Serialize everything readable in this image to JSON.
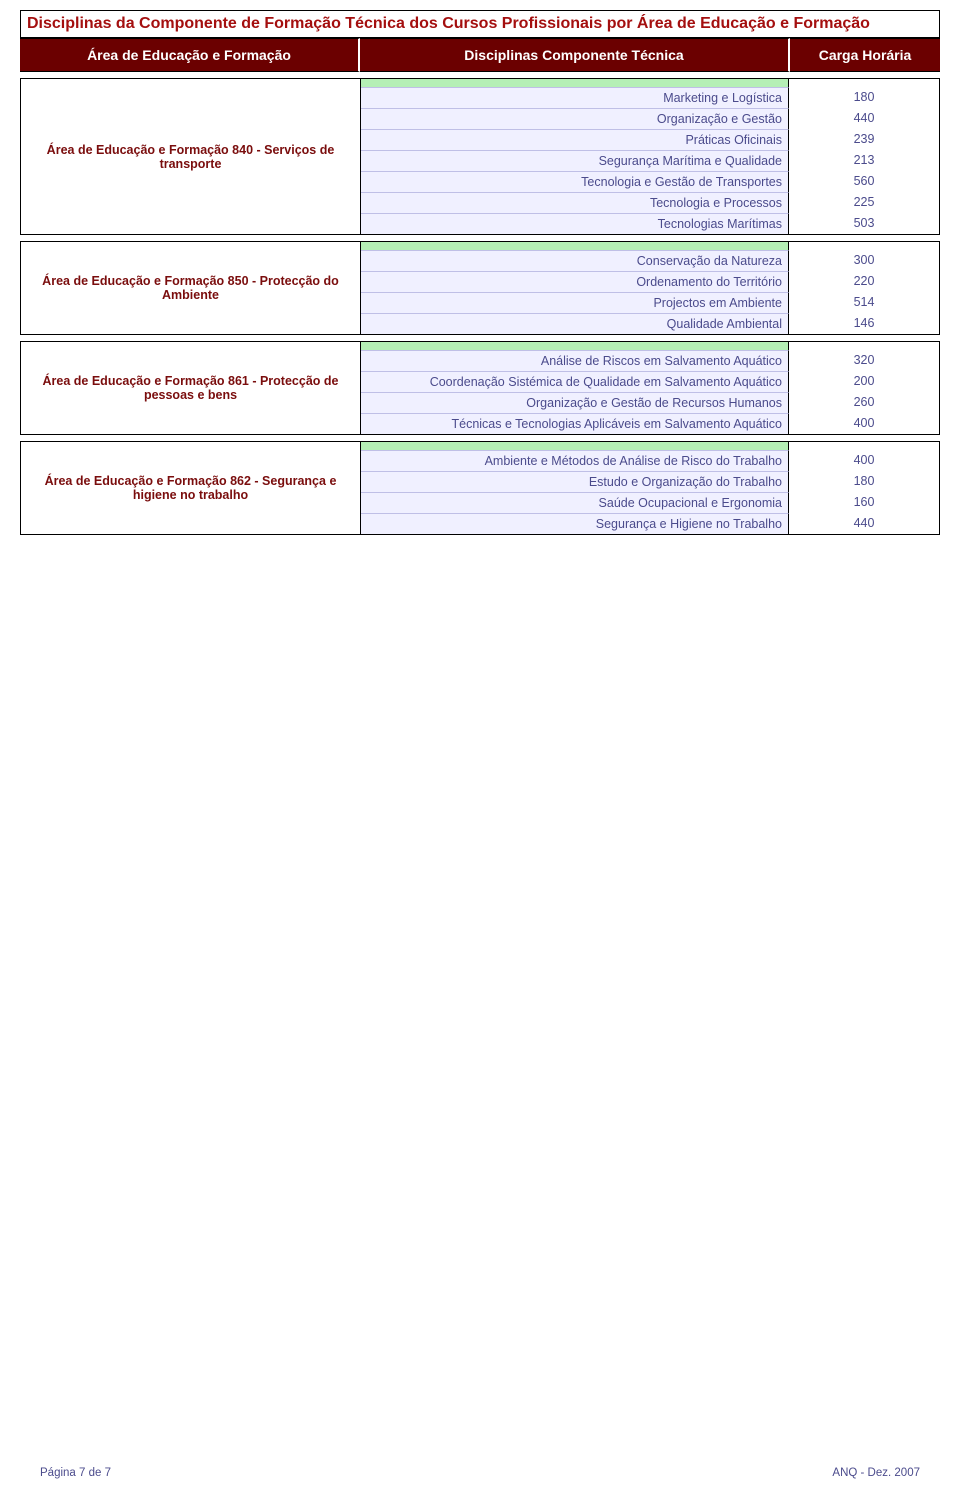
{
  "colors": {
    "title_text": "#a40f0f",
    "header_bg": "#6b0000",
    "header_text": "#ffffff",
    "area_label_text": "#7a0d0d",
    "row_bg_even": "#f0f0ff",
    "row_bg_highlight": "#b5efb5",
    "row_text": "#4b4b8c",
    "border_color": "#000000"
  },
  "title": "Disciplinas da Componente de Formação Técnica dos Cursos Profissionais por Área de Educação e Formação",
  "header": {
    "area": "Área de Educação e Formação",
    "disc": "Disciplinas Componente Técnica",
    "carga": "Carga Horária"
  },
  "sections": [
    {
      "area_label": "Área de Educação e Formação 840 - Serviços de transporte",
      "rows": [
        {
          "disc": "Marketing e Logística",
          "carga": "180"
        },
        {
          "disc": "Organização e Gestão",
          "carga": "440"
        },
        {
          "disc": "Práticas Oficinais",
          "carga": "239"
        },
        {
          "disc": "Segurança Marítima e Qualidade",
          "carga": "213"
        },
        {
          "disc": "Tecnologia e Gestão de Transportes",
          "carga": "560"
        },
        {
          "disc": "Tecnologia e Processos",
          "carga": "225"
        },
        {
          "disc": "Tecnologias Marítimas",
          "carga": "503"
        }
      ]
    },
    {
      "area_label": "Área de Educação e Formação 850 -  Protecção do Ambiente",
      "rows": [
        {
          "disc": "Conservação da Natureza",
          "carga": "300"
        },
        {
          "disc": "Ordenamento do Território",
          "carga": "220"
        },
        {
          "disc": "Projectos em Ambiente",
          "carga": "514"
        },
        {
          "disc": "Qualidade Ambiental",
          "carga": "146"
        }
      ]
    },
    {
      "area_label": "Área de Educação e Formação 861 -  Protecção de pessoas e bens",
      "rows": [
        {
          "disc": "Análise de Riscos em Salvamento Aquático",
          "carga": "320"
        },
        {
          "disc": "Coordenação Sistémica de Qualidade em Salvamento Aquático",
          "carga": "200"
        },
        {
          "disc": "Organização e Gestão de Recursos Humanos",
          "carga": "260"
        },
        {
          "disc": "Técnicas e Tecnologias Aplicáveis em Salvamento Aquático",
          "carga": "400"
        }
      ]
    },
    {
      "area_label": "Área de Educação e Formação 862 - Segurança e higiene no trabalho",
      "rows": [
        {
          "disc": "Ambiente e Métodos de Análise de Risco do Trabalho",
          "carga": "400"
        },
        {
          "disc": "Estudo e Organização do Trabalho",
          "carga": "180"
        },
        {
          "disc": "Saúde Ocupacional e Ergonomia",
          "carga": "160"
        },
        {
          "disc": "Segurança e Higiene no Trabalho",
          "carga": "440"
        }
      ]
    }
  ],
  "footer": {
    "page": "Página 7 de 7",
    "right": "ANQ -  Dez. 2007"
  }
}
